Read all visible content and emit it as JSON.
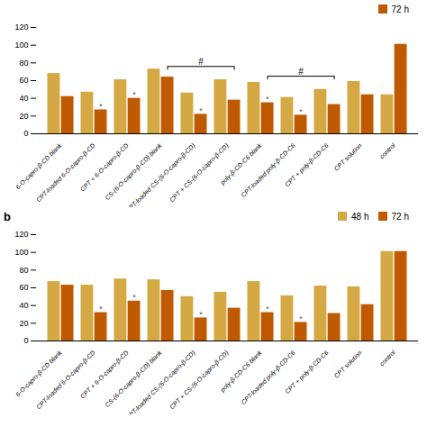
{
  "chart_data": [
    {
      "type": "bar",
      "categories": [
        "6-O-capro-β-CD blank",
        "CPT-loaded 6-O-capro-β-CD",
        "CPT + 6-O-capro-β-CD",
        "CS-(6-O-capro-β-CD) blank",
        "CPT-loaded CS-(6-O-capro-β-CD)",
        "CPT + CS-(6-O-capro-β-CD)",
        "poly-β-CD-C6 blank",
        "CPT-loaded poly-β-CD-C6",
        "CPT + poly-β-CD-C6",
        "CPT solution",
        "control"
      ],
      "series": [
        {
          "color": "#D4A843",
          "values": [
            68,
            47,
            61,
            73,
            46,
            61,
            58,
            41,
            50,
            59,
            44
          ]
        },
        {
          "name": "72 h",
          "color": "#C05A00",
          "values": [
            42,
            27,
            40,
            64,
            22,
            38,
            35,
            21,
            33,
            44,
            101
          ]
        }
      ],
      "ylim": [
        0,
        120
      ],
      "yticks": [
        0,
        20,
        40,
        60,
        80,
        100,
        120
      ],
      "grid": false,
      "legend": "upper right",
      "annotations": [
        {
          "text": "*",
          "category": "CPT-loaded 6-O-capro-β-CD",
          "series": "72 h"
        },
        {
          "text": "*",
          "category": "CPT + 6-O-capro-β-CD",
          "series": "72 h"
        },
        {
          "text": "*",
          "category": "CPT-loaded CS-(6-O-capro-β-CD)",
          "series": "72 h"
        },
        {
          "text": "*",
          "category": "poly-β-CD-C6 blank",
          "series": "72 h"
        },
        {
          "text": "*",
          "category": "CPT-loaded poly-β-CD-C6",
          "series": "72 h"
        },
        {
          "text": "#",
          "categories": [
            "CS-(6-O-capro-β-CD) blank",
            "CPT + CS-(6-O-capro-β-CD)"
          ],
          "series": "72 h",
          "y": 76
        },
        {
          "text": "#",
          "categories": [
            "poly-β-CD-C6 blank",
            "CPT + poly-β-CD-C6"
          ],
          "series": "72 h",
          "y": 65
        }
      ]
    },
    {
      "type": "bar",
      "categories": [
        "6-O-capro-β-CD blank",
        "CPT-loaded 6-O-capro-β-CD",
        "CPT + 6-O-capro-β-CD",
        "CS-(6-O-capro-β-CD) blank",
        "CPT-loaded CS-(6-O-capro-β-CD)",
        "CPT + CS-(6-O-capro-β-CD)",
        "poly-β-CD-C6 blank",
        "CPT-loaded poly-β-CD-C6",
        "CPT + poly-β-CD-C6",
        "CPT solution",
        "control"
      ],
      "series": [
        {
          "name": "48 h",
          "color": "#D4A843",
          "values": [
            67,
            63,
            70,
            69,
            50,
            55,
            67,
            51,
            62,
            61,
            101
          ]
        },
        {
          "name": "72 h",
          "color": "#C05A00",
          "values": [
            63,
            32,
            45,
            57,
            26,
            37,
            32,
            21,
            31,
            41,
            101
          ]
        }
      ],
      "ylim": [
        0,
        120
      ],
      "yticks": [
        0,
        20,
        40,
        60,
        80,
        100,
        120
      ],
      "grid": false,
      "legend": "upper right",
      "annotations": [
        {
          "text": "*",
          "category": "CPT-loaded 6-O-capro-β-CD",
          "series": "72 h"
        },
        {
          "text": "*",
          "category": "CPT + 6-O-capro-β-CD",
          "series": "72 h"
        },
        {
          "text": "*",
          "category": "CPT-loaded CS-(6-O-capro-β-CD)",
          "series": "72 h"
        },
        {
          "text": "*",
          "category": "poly-β-CD-C6 blank",
          "series": "72 h"
        },
        {
          "text": "*",
          "category": "CPT-loaded poly-β-CD-C6",
          "series": "72 h"
        },
        {
          "text": "b"
        }
      ]
    }
  ]
}
